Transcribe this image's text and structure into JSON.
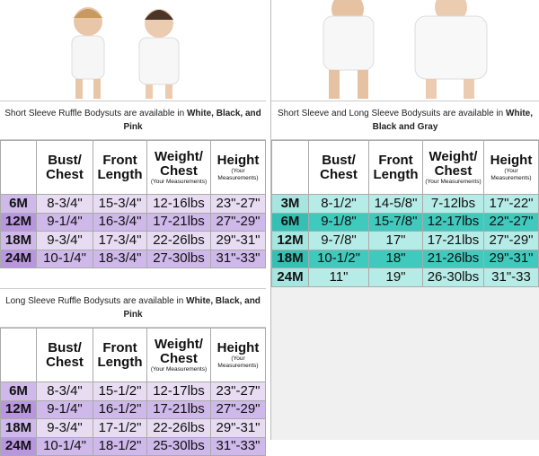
{
  "columns": {
    "bust": "Bust/ Chest",
    "front": "Front Length",
    "weight": "Weight/ Chest",
    "height": "Height",
    "note": "(Your Measurements)"
  },
  "short_ruffle": {
    "caption_pre": "Short Sleeve Ruffle Bodysuts are available in ",
    "caption_bold": "White, Black, and Pink",
    "rows": [
      [
        "6M",
        "8-3/4\"",
        "15-3/4\"",
        "12-16lbs",
        "23\"-27\""
      ],
      [
        "12M",
        "9-1/4\"",
        "16-3/4\"",
        "17-21lbs",
        "27\"-29\""
      ],
      [
        "18M",
        "9-3/4\"",
        "17-3/4\"",
        "22-26lbs",
        "29\"-31\""
      ],
      [
        "24M",
        "10-1/4\"",
        "18-3/4\"",
        "27-30lbs",
        "31\"-33\""
      ]
    ]
  },
  "long_ruffle": {
    "caption_pre": "Long Sleeve Ruffle Bodysuts are available in ",
    "caption_bold": "White, Black, and Pink",
    "rows": [
      [
        "6M",
        "8-3/4\"",
        "15-1/2\"",
        "12-17lbs",
        "23\"-27\""
      ],
      [
        "12M",
        "9-1/4\"",
        "16-1/2\"",
        "17-21lbs",
        "27\"-29\""
      ],
      [
        "18M",
        "9-3/4\"",
        "17-1/2\"",
        "22-26lbs",
        "29\"-31\""
      ],
      [
        "24M",
        "10-1/4\"",
        "18-1/2\"",
        "25-30lbs",
        "31\"-33\""
      ]
    ]
  },
  "bodysuits": {
    "caption_pre": "Short Sleeve and Long Sleeve Bodysuits are available in ",
    "caption_bold": "White, Black and Gray",
    "rows": [
      [
        "3M",
        "8-1/2\"",
        "14-5/8\"",
        "7-12lbs",
        "17\"-22\""
      ],
      [
        "6M",
        "9-1/8\"",
        "15-7/8\"",
        "12-17lbs",
        "22\"-27\""
      ],
      [
        "12M",
        "9-7/8\"",
        "17\"",
        "17-21lbs",
        "27\"-29\""
      ],
      [
        "18M",
        "10-1/2\"",
        "18\"",
        "21-26lbs",
        "29\"-31\""
      ],
      [
        "24M",
        "11\"",
        "19\"",
        "26-30lbs",
        "31\"-33"
      ]
    ]
  },
  "colors": {
    "purple_light": "#e8dcf3",
    "purple_dark": "#cfb8ea",
    "teal_light": "#b6ece7",
    "teal_dark": "#40c9bd"
  }
}
